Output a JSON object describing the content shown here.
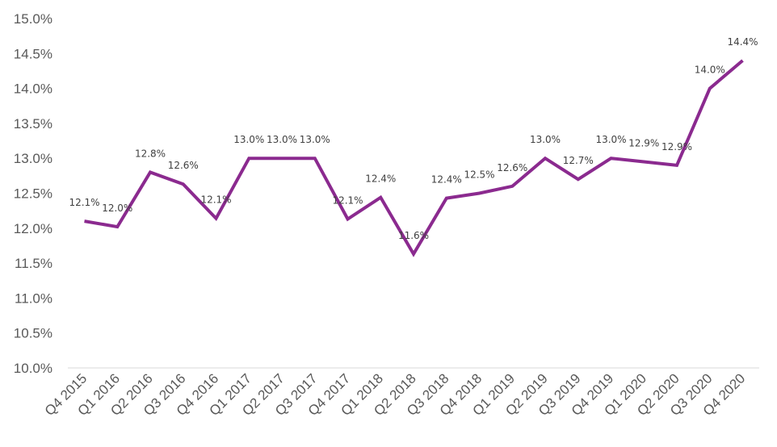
{
  "chart_data": {
    "type": "line",
    "title": "",
    "xlabel": "",
    "ylabel": "",
    "ylim": [
      10.0,
      15.0
    ],
    "y_tick_step": 0.5,
    "y_tick_format": "percent_1dp",
    "grid": false,
    "legend": "none",
    "line_color": "#8B2A8F",
    "categories": [
      "Q4 2015",
      "Q1 2016",
      "Q2 2016",
      "Q3 2016",
      "Q4 2016",
      "Q1 2017",
      "Q2 2017",
      "Q3 2017",
      "Q4 2017",
      "Q1 2018",
      "Q2 2018",
      "Q3 2018",
      "Q4 2018",
      "Q1 2019",
      "Q2 2019",
      "Q3 2019",
      "Q4 2019",
      "Q1 2020",
      "Q2 2020",
      "Q3 2020",
      "Q4 2020"
    ],
    "values": [
      12.1,
      12.02,
      12.8,
      12.63,
      12.14,
      13.0,
      13.0,
      13.0,
      12.13,
      12.44,
      11.63,
      12.43,
      12.5,
      12.6,
      13.0,
      12.7,
      13.0,
      12.95,
      12.9,
      14.0,
      14.4
    ],
    "data_labels": [
      "12.1%",
      "12.0%",
      "12.8%",
      "12.6%",
      "12.1%",
      "13.0%",
      "13.0%",
      "13.0%",
      "12.1%",
      "12.4%",
      "11.6%",
      "12.4%",
      "12.5%",
      "12.6%",
      "13.0%",
      "12.7%",
      "13.0%",
      "12.9%",
      "12.9%",
      "14.0%",
      "14.4%"
    ]
  }
}
